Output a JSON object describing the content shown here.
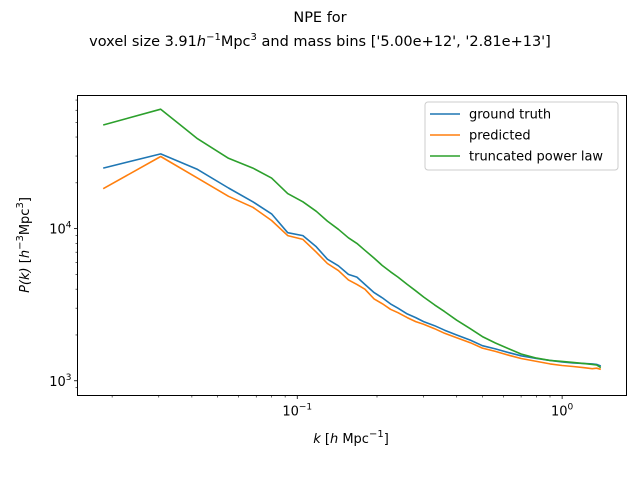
{
  "chart_data": {
    "type": "line",
    "title_line1": "NPE for",
    "title_line2_prefix": "voxel size 3.91",
    "title_line2_h": "h",
    "title_line2_hexp": "−1",
    "title_line2_mpc": "Mpc",
    "title_line2_mpcexp": "3",
    "title_line2_suffix": " and mass bins ['5.00e+12', '2.81e+13']",
    "xlabel_k": "k",
    "xlabel_unit_open": " [",
    "xlabel_h": "h",
    "xlabel_mpc": " Mpc",
    "xlabel_exp": "−1",
    "xlabel_close": "]",
    "ylabel_pk": "P(k)",
    "ylabel_unit_open": " [",
    "ylabel_h": "h",
    "ylabel_hexp": "−3",
    "ylabel_mpc": "Mpc",
    "ylabel_mpcexp": "3",
    "ylabel_close": "]",
    "xscale": "log",
    "yscale": "log",
    "xlim": [
      0.0148,
      1.75
    ],
    "ylim": [
      800,
      75000
    ],
    "xticks": [
      {
        "value": 0.1,
        "base": "10",
        "exp": "−1"
      },
      {
        "value": 1,
        "base": "10",
        "exp": "0"
      }
    ],
    "yticks": [
      {
        "value": 1000,
        "base": "10",
        "exp": "3"
      },
      {
        "value": 10000,
        "base": "10",
        "exp": "4"
      }
    ],
    "legend_position": "upper right",
    "grid": false,
    "x": [
      0.0185,
      0.0305,
      0.042,
      0.055,
      0.068,
      0.08,
      0.092,
      0.105,
      0.118,
      0.13,
      0.143,
      0.156,
      0.168,
      0.18,
      0.195,
      0.21,
      0.225,
      0.24,
      0.26,
      0.28,
      0.3,
      0.33,
      0.36,
      0.4,
      0.45,
      0.5,
      0.56,
      0.63,
      0.7,
      0.8,
      0.9,
      1.0,
      1.1,
      1.2,
      1.3,
      1.35,
      1.4
    ],
    "series": [
      {
        "name": "ground truth",
        "color": "#1f77b4",
        "values": [
          25000,
          31000,
          24500,
          18500,
          15000,
          12500,
          9400,
          9000,
          7600,
          6300,
          5700,
          5000,
          4800,
          4300,
          3800,
          3500,
          3200,
          3000,
          2750,
          2600,
          2450,
          2300,
          2150,
          2000,
          1850,
          1700,
          1620,
          1530,
          1460,
          1400,
          1360,
          1330,
          1310,
          1300,
          1290,
          1280,
          1250
        ]
      },
      {
        "name": "predicted",
        "color": "#ff7f0e",
        "values": [
          18300,
          29800,
          21500,
          16300,
          13800,
          11300,
          9000,
          8500,
          7000,
          5900,
          5300,
          4600,
          4300,
          4000,
          3450,
          3200,
          2950,
          2800,
          2600,
          2450,
          2350,
          2200,
          2050,
          1920,
          1780,
          1640,
          1560,
          1470,
          1400,
          1340,
          1290,
          1260,
          1240,
          1220,
          1200,
          1210,
          1190
        ]
      },
      {
        "name": "truncated power law",
        "color": "#2ca02c",
        "values": [
          48000,
          61000,
          39000,
          29000,
          25000,
          21500,
          17000,
          15000,
          13000,
          11200,
          9900,
          8700,
          8000,
          7200,
          6400,
          5700,
          5200,
          4800,
          4300,
          3900,
          3550,
          3150,
          2850,
          2500,
          2200,
          1950,
          1770,
          1620,
          1500,
          1410,
          1360,
          1340,
          1320,
          1300,
          1280,
          1270,
          1220
        ]
      }
    ]
  }
}
